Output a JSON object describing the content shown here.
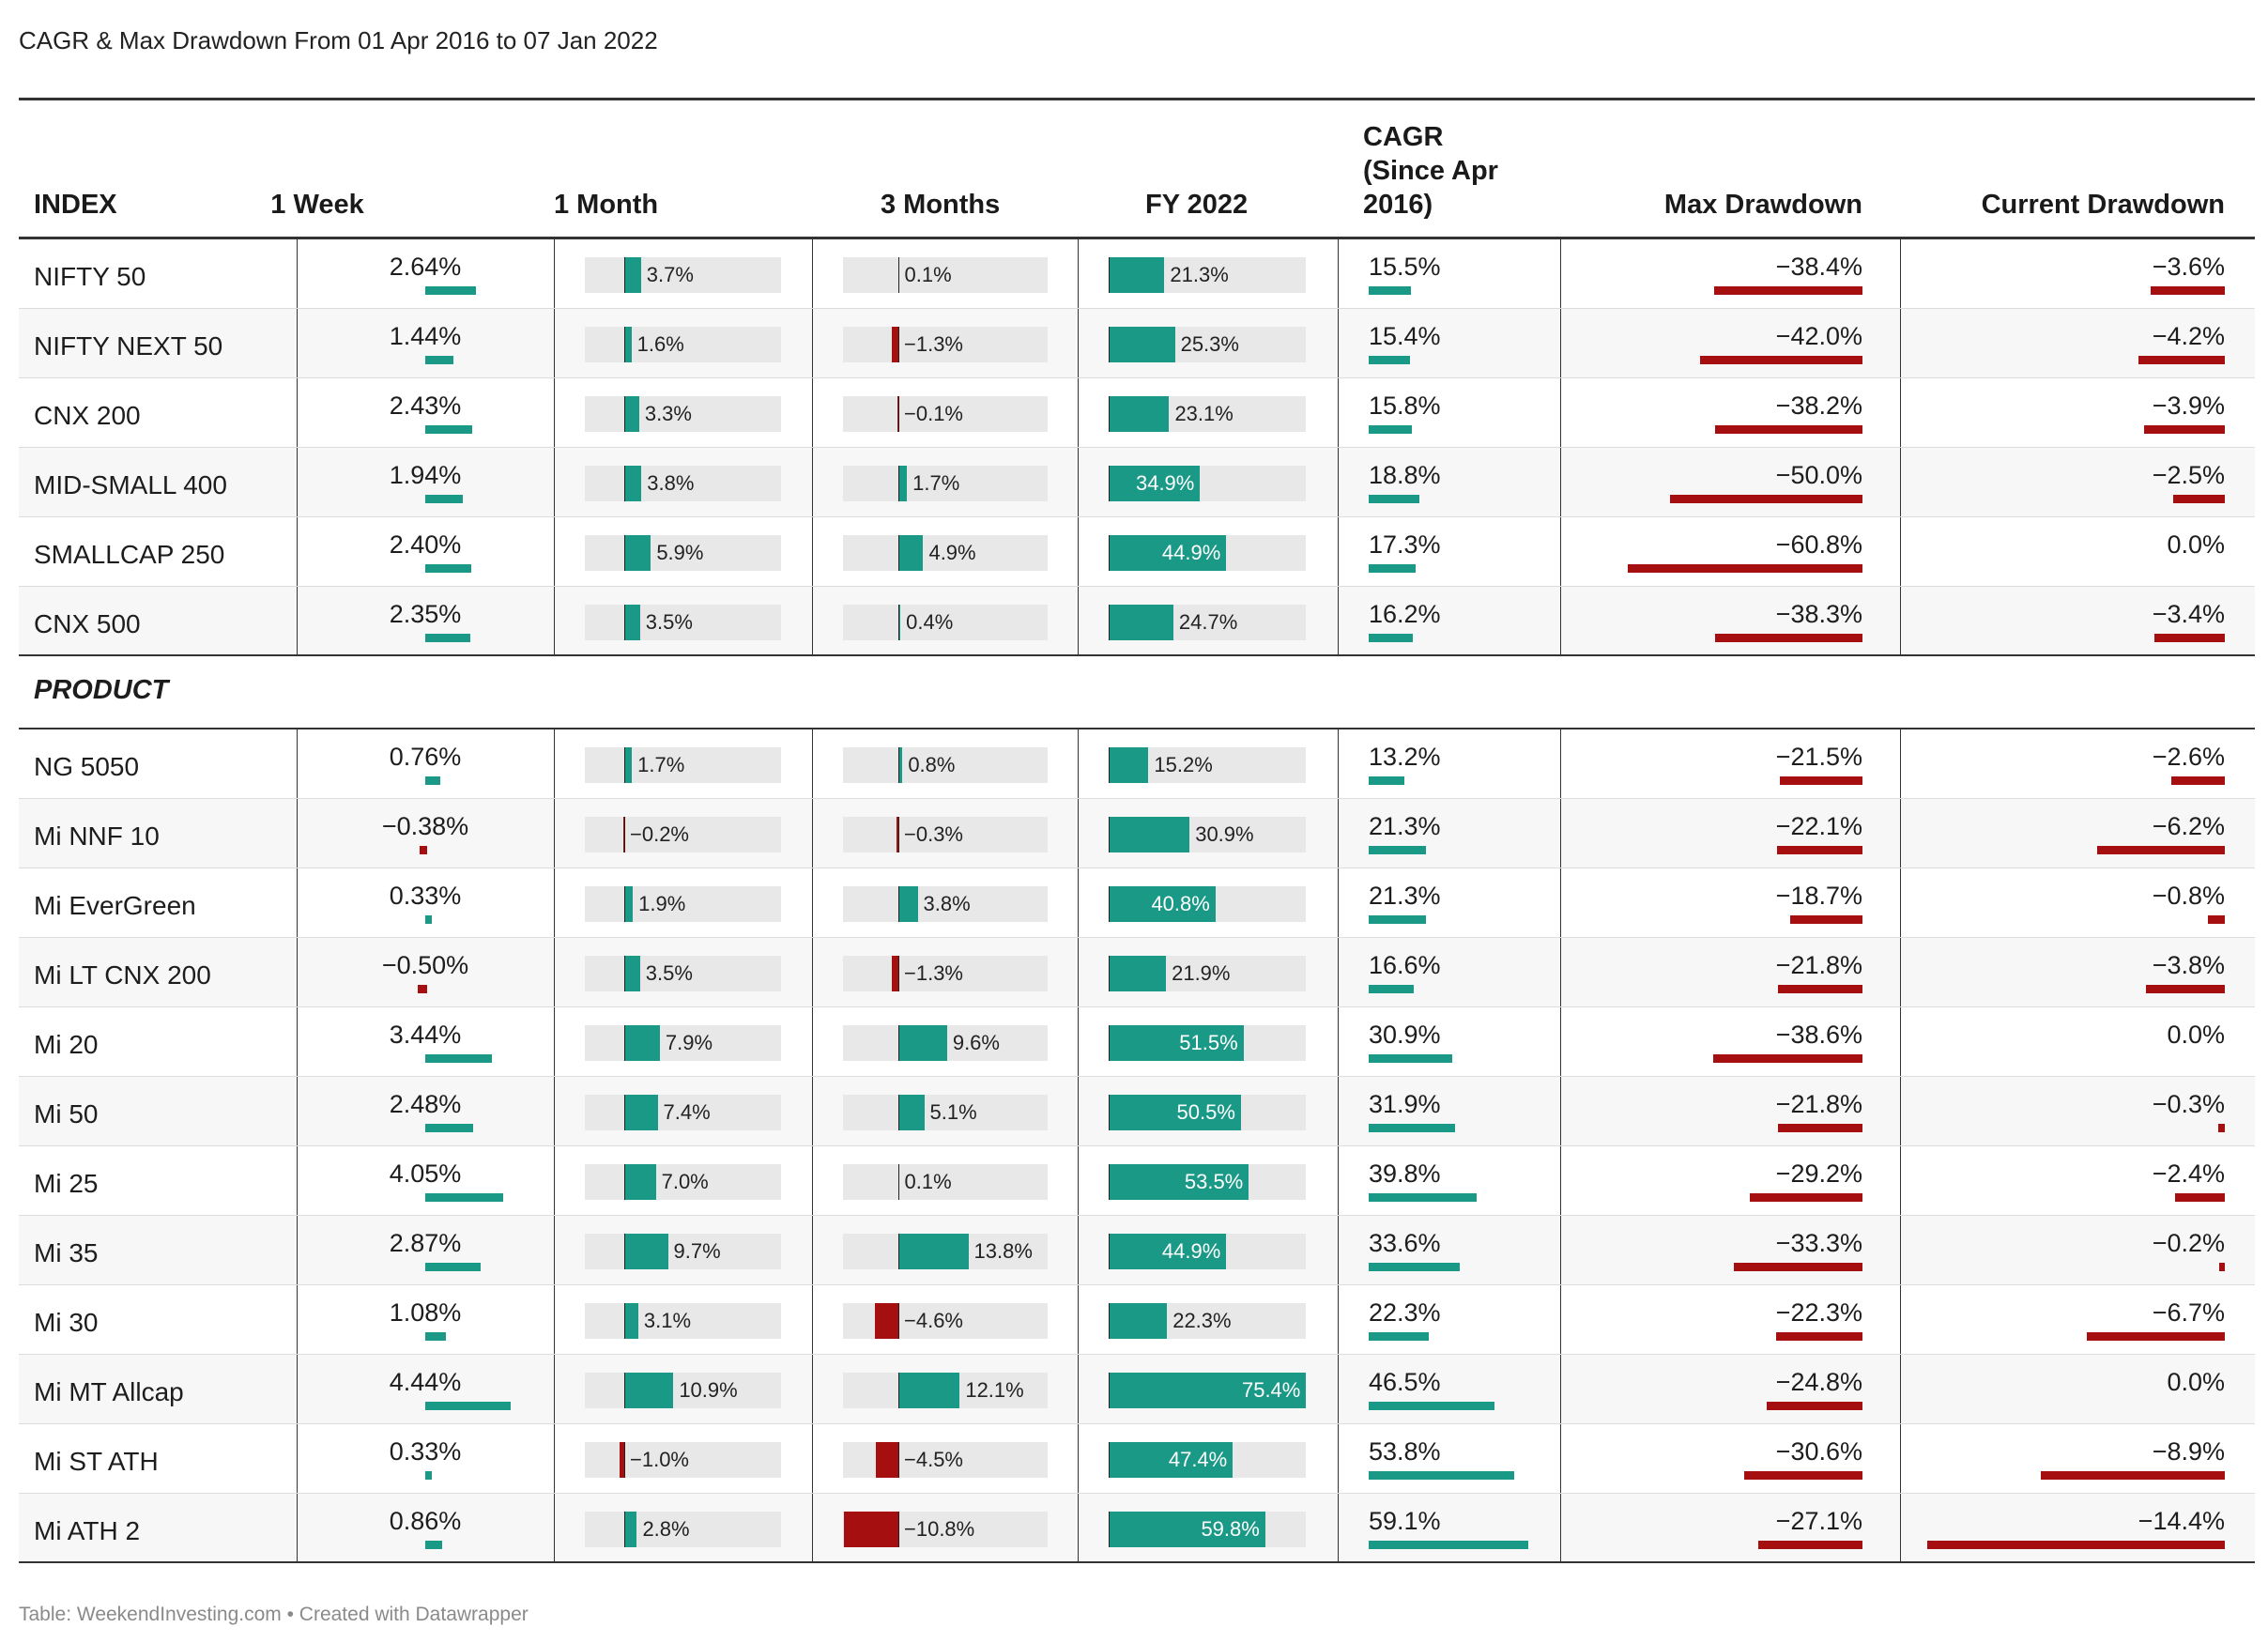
{
  "title": "CAGR & Max Drawdown From 01 Apr 2016 to 07 Jan 2022",
  "footer": "Table: WeekendInvesting.com • Created with Datawrapper",
  "colors": {
    "positive": "#1a9a86",
    "negative": "#a50f0f",
    "track": "#e8e8e8"
  },
  "chart_data": {
    "type": "table",
    "columns": [
      "INDEX",
      "1 Week",
      "1 Month",
      "3 Months",
      "FY 2022",
      "CAGR (Since Apr 2016)",
      "Max Drawdown",
      "Current Drawdown"
    ],
    "column_headers": {
      "index": "INDEX",
      "week": "1 Week",
      "month": "1 Month",
      "months3": "3 Months",
      "fy": "FY 2022",
      "cagr": [
        "CAGR",
        "(Since Apr",
        "2016)"
      ],
      "maxdd": "Max Drawdown",
      "curdd": "Current Drawdown"
    },
    "groups": [
      {
        "title": "",
        "rows": [
          {
            "name": "NIFTY 50",
            "week": 2.64,
            "month": 3.7,
            "months3": 0.1,
            "fy": 21.3,
            "cagr": 15.5,
            "maxdd": -38.4,
            "curdd": -3.6
          },
          {
            "name": "NIFTY NEXT 50",
            "week": 1.44,
            "month": 1.6,
            "months3": -1.3,
            "fy": 25.3,
            "cagr": 15.4,
            "maxdd": -42.0,
            "curdd": -4.2
          },
          {
            "name": "CNX 200",
            "week": 2.43,
            "month": 3.3,
            "months3": -0.1,
            "fy": 23.1,
            "cagr": 15.8,
            "maxdd": -38.2,
            "curdd": -3.9
          },
          {
            "name": "MID-SMALL 400",
            "week": 1.94,
            "month": 3.8,
            "months3": 1.7,
            "fy": 34.9,
            "cagr": 18.8,
            "maxdd": -50.0,
            "curdd": -2.5
          },
          {
            "name": "SMALLCAP 250",
            "week": 2.4,
            "month": 5.9,
            "months3": 4.9,
            "fy": 44.9,
            "cagr": 17.3,
            "maxdd": -60.8,
            "curdd": 0.0
          },
          {
            "name": "CNX 500",
            "week": 2.35,
            "month": 3.5,
            "months3": 0.4,
            "fy": 24.7,
            "cagr": 16.2,
            "maxdd": -38.3,
            "curdd": -3.4
          }
        ]
      },
      {
        "title": "PRODUCT",
        "rows": [
          {
            "name": "NG 5050",
            "week": 0.76,
            "month": 1.7,
            "months3": 0.8,
            "fy": 15.2,
            "cagr": 13.2,
            "maxdd": -21.5,
            "curdd": -2.6
          },
          {
            "name": "Mi NNF 10",
            "week": -0.38,
            "month": -0.2,
            "months3": -0.3,
            "fy": 30.9,
            "cagr": 21.3,
            "maxdd": -22.1,
            "curdd": -6.2
          },
          {
            "name": "Mi EverGreen",
            "week": 0.33,
            "month": 1.9,
            "months3": 3.8,
            "fy": 40.8,
            "cagr": 21.3,
            "maxdd": -18.7,
            "curdd": -0.8
          },
          {
            "name": "Mi LT CNX 200",
            "week": -0.5,
            "month": 3.5,
            "months3": -1.3,
            "fy": 21.9,
            "cagr": 16.6,
            "maxdd": -21.8,
            "curdd": -3.8
          },
          {
            "name": "Mi 20",
            "week": 3.44,
            "month": 7.9,
            "months3": 9.6,
            "fy": 51.5,
            "cagr": 30.9,
            "maxdd": -38.6,
            "curdd": 0.0
          },
          {
            "name": "Mi 50",
            "week": 2.48,
            "month": 7.4,
            "months3": 5.1,
            "fy": 50.5,
            "cagr": 31.9,
            "maxdd": -21.8,
            "curdd": -0.3
          },
          {
            "name": "Mi 25",
            "week": 4.05,
            "month": 7.0,
            "months3": 0.1,
            "fy": 53.5,
            "cagr": 39.8,
            "maxdd": -29.2,
            "curdd": -2.4
          },
          {
            "name": "Mi 35",
            "week": 2.87,
            "month": 9.7,
            "months3": 13.8,
            "fy": 44.9,
            "cagr": 33.6,
            "maxdd": -33.3,
            "curdd": -0.2
          },
          {
            "name": "Mi 30",
            "week": 1.08,
            "month": 3.1,
            "months3": -4.6,
            "fy": 22.3,
            "cagr": 22.3,
            "maxdd": -22.3,
            "curdd": -6.7
          },
          {
            "name": "Mi MT Allcap",
            "week": 4.44,
            "month": 10.9,
            "months3": 12.1,
            "fy": 75.4,
            "cagr": 46.5,
            "maxdd": -24.8,
            "curdd": 0.0
          },
          {
            "name": "Mi ST ATH",
            "week": 0.33,
            "month": -1.0,
            "months3": -4.5,
            "fy": 47.4,
            "cagr": 53.8,
            "maxdd": -30.6,
            "curdd": -8.9
          },
          {
            "name": "Mi ATH 2",
            "week": 0.86,
            "month": 2.8,
            "months3": -10.8,
            "fy": 59.8,
            "cagr": 59.1,
            "maxdd": -27.1,
            "curdd": -14.4
          }
        ]
      }
    ]
  }
}
